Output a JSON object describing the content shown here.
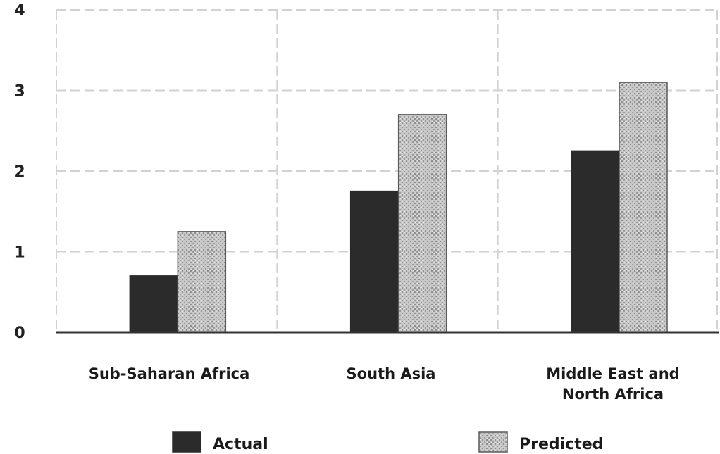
{
  "colors": {
    "actual": "#2b2b2b",
    "predicted": "#c4c4c4",
    "grid": "#d2d2d2",
    "axis": "#333333"
  },
  "chart_data": {
    "type": "bar",
    "categories": [
      [
        "Sub-Saharan Africa"
      ],
      [
        "South Asia"
      ],
      [
        "Middle East and",
        "North Africa"
      ]
    ],
    "series": [
      {
        "name": "Actual",
        "values": [
          0.7,
          1.75,
          2.25
        ]
      },
      {
        "name": "Predicted",
        "values": [
          1.25,
          2.7,
          3.1
        ]
      }
    ],
    "title": "",
    "xlabel": "",
    "ylabel": "",
    "ylim": [
      0,
      4
    ],
    "yticks": [
      "0",
      "1",
      "2",
      "3",
      "4"
    ],
    "grid": true,
    "legend_position": "bottom"
  }
}
